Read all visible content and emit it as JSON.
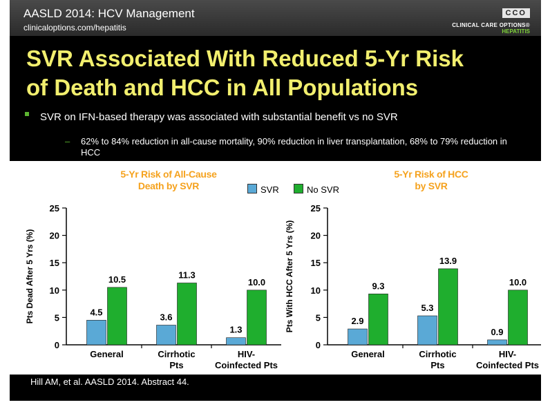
{
  "header": {
    "title": "AASLD 2014: HCV Management",
    "subtitle": "clinicaloptions.com/hepatitis",
    "logo_box": "CCO",
    "logo_main": "CLINICAL CARE OPTIONS®",
    "logo_sub": "HEPATITIS"
  },
  "slide": {
    "title_line1": "SVR Associated With Reduced 5-Yr Risk",
    "title_line2": "of Death and HCC in All Populations",
    "bullet1": "SVR on IFN-based therapy was associated with substantial benefit vs no SVR",
    "bullet2": "62% to 84% reduction in all-cause mortality, 90% reduction in liver transplantation, 68% to 79% reduction in HCC",
    "citation": "Hill AM, et al. AASLD 2014. Abstract 44."
  },
  "legend": {
    "svr": "SVR",
    "no_svr": "No SVR"
  },
  "colors": {
    "svr": "#5aa9d6",
    "no_svr": "#1fae2e",
    "title": "#f2ef6e",
    "chart_title": "#f5a21e"
  },
  "chart_data": [
    {
      "type": "bar",
      "title_line1": "5-Yr Risk of All-Cause",
      "title_line2": "Death by SVR",
      "ylabel": "Pts Dead After 5 Yrs (%)",
      "ylim": [
        0,
        25
      ],
      "yticks": [
        "0",
        "5",
        "10",
        "15",
        "20",
        "25"
      ],
      "categories": [
        [
          "General"
        ],
        [
          "Cirrhotic",
          "Pts"
        ],
        [
          "HIV-",
          "Coinfected Pts"
        ]
      ],
      "series": [
        {
          "name": "SVR",
          "values": [
            4.5,
            3.6,
            1.3
          ],
          "labels": [
            "4.5",
            "3.6",
            "1.3"
          ]
        },
        {
          "name": "No SVR",
          "values": [
            10.5,
            11.3,
            10.0
          ],
          "labels": [
            "10.5",
            "11.3",
            "10.0"
          ]
        }
      ]
    },
    {
      "type": "bar",
      "title_line1": "5-Yr Risk of HCC",
      "title_line2": "by SVR",
      "ylabel": "Pts With HCC After 5 Yrs (%)",
      "ylim": [
        0,
        25
      ],
      "yticks": [
        "0",
        "5",
        "10",
        "15",
        "20",
        "25"
      ],
      "categories": [
        [
          "General"
        ],
        [
          "Cirrhotic",
          "Pts"
        ],
        [
          "HIV-",
          "Coinfected Pts"
        ]
      ],
      "series": [
        {
          "name": "SVR",
          "values": [
            2.9,
            5.3,
            0.9
          ],
          "labels": [
            "2.9",
            "5.3",
            "0.9"
          ]
        },
        {
          "name": "No SVR",
          "values": [
            9.3,
            13.9,
            10.0
          ],
          "labels": [
            "9.3",
            "13.9",
            "10.0"
          ]
        }
      ]
    }
  ]
}
